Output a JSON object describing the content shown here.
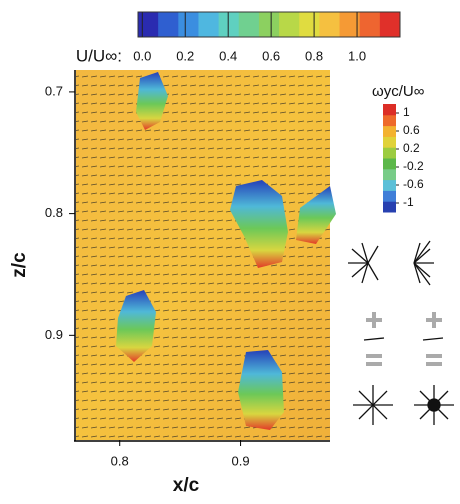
{
  "chart_data": {
    "type": "vector-field",
    "xlabel": "x/c",
    "ylabel": "z/c",
    "xlim": [
      0.763,
      0.974
    ],
    "xticks": [
      0.8,
      0.9
    ],
    "ylim": [
      0.682,
      0.986
    ],
    "yticks": [
      0.7,
      0.8,
      0.9
    ],
    "y_inverted": true,
    "colorbar_top": {
      "title": "U/U∞:",
      "lim": [
        -0.02,
        1.2
      ],
      "ticks": [
        {
          "value": 0,
          "label": "0.0"
        },
        0.2,
        0.4,
        0.6,
        0.8,
        {
          "value": 1,
          "label": "1.0"
        }
      ],
      "colors": [
        "#2a2bb0",
        "#2f5fd0",
        "#3b8ee0",
        "#4fb7e0",
        "#5fd0c0",
        "#70d090",
        "#8cd060",
        "#b8d848",
        "#e0dc40",
        "#f5c040",
        "#f59a35",
        "#ee6530",
        "#e0302a"
      ]
    },
    "colorbar_right": {
      "title": "ωyc/U∞",
      "lim": [
        -1.2,
        1.2
      ],
      "ticks": [
        1,
        0.6,
        0.2,
        -0.2,
        -0.6,
        -1
      ],
      "colors": [
        "#2740b0",
        "#3f7ed8",
        "#5cc0d8",
        "#78cc88",
        "#5cb84a",
        "#9ccc40",
        "#e0d23a",
        "#f3b230",
        "#ee6a2a",
        "#dc2e26"
      ]
    }
  }
}
